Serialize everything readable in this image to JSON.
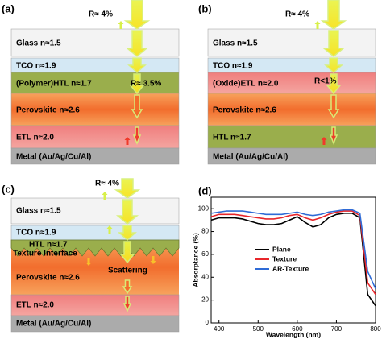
{
  "panels": {
    "a": {
      "label": "(a)",
      "top_reflection": "R≈ 4%",
      "inner_reflection": "R≈ 3.5%",
      "layers": [
        "Glass n≈1.5",
        "TCO   n≈1.9",
        "(Polymer)HTL  n≈1.7",
        "Perovskite n≈2.6",
        "ETL  n≈2.0",
        "Metal (Au/Ag/Cu/Al)"
      ]
    },
    "b": {
      "label": "(b)",
      "top_reflection": "R≈ 4%",
      "inner_reflection": "R<1%",
      "layers": [
        "Glass n≈1.5",
        "TCO   n≈1.9",
        "(Oxide)ETL  n≈2.0",
        "Perovskite n≈2.6",
        "HTL   n≈1.7",
        "Metal (Au/Ag/Cu/Al)"
      ]
    },
    "c": {
      "label": "(c)",
      "top_reflection": "R≈ 4%",
      "layers": [
        "Glass n≈1.5",
        "TCO   n≈1.9",
        "HTL n≈1.7",
        "Texture Interface",
        "Perovskite  n≈2.6",
        "Scattering",
        "ETL     n≈2.0",
        "Metal (Au/Ag/Cu/Al)"
      ]
    },
    "d": {
      "label": "(d)"
    }
  },
  "chart_data": {
    "type": "line",
    "xlabel": "Wavelength (nm)",
    "ylabel": "Absorptance (%)",
    "x": [
      380,
      400,
      420,
      440,
      460,
      480,
      500,
      520,
      540,
      560,
      580,
      600,
      620,
      640,
      660,
      680,
      700,
      720,
      740,
      760,
      780,
      800
    ],
    "series": [
      {
        "name": "Plane",
        "color": "#000000",
        "values": [
          90,
          92,
          92,
          92,
          91,
          89,
          87,
          86,
          86,
          87,
          90,
          93,
          88,
          84,
          86,
          92,
          95,
          96,
          96,
          92,
          25,
          15
        ]
      },
      {
        "name": "Texture",
        "color": "#e8262b",
        "values": [
          93,
          95,
          95,
          95,
          94,
          93,
          92,
          91,
          91,
          92,
          94,
          95,
          92,
          90,
          92,
          95,
          97,
          98,
          98,
          94,
          35,
          25
        ]
      },
      {
        "name": "AR-Texture",
        "color": "#2f6bd6",
        "values": [
          96,
          97,
          98,
          98,
          98,
          97,
          96,
          95,
          95,
          95,
          96,
          97,
          95,
          94,
          95,
          97,
          98,
          99,
          99,
          96,
          45,
          30
        ]
      }
    ],
    "xlim": [
      380,
      800
    ],
    "xticks": [
      400,
      500,
      600,
      700,
      800
    ],
    "ylim": [
      0,
      110
    ],
    "yticks": [
      0,
      20,
      40,
      60,
      80,
      100
    ]
  }
}
